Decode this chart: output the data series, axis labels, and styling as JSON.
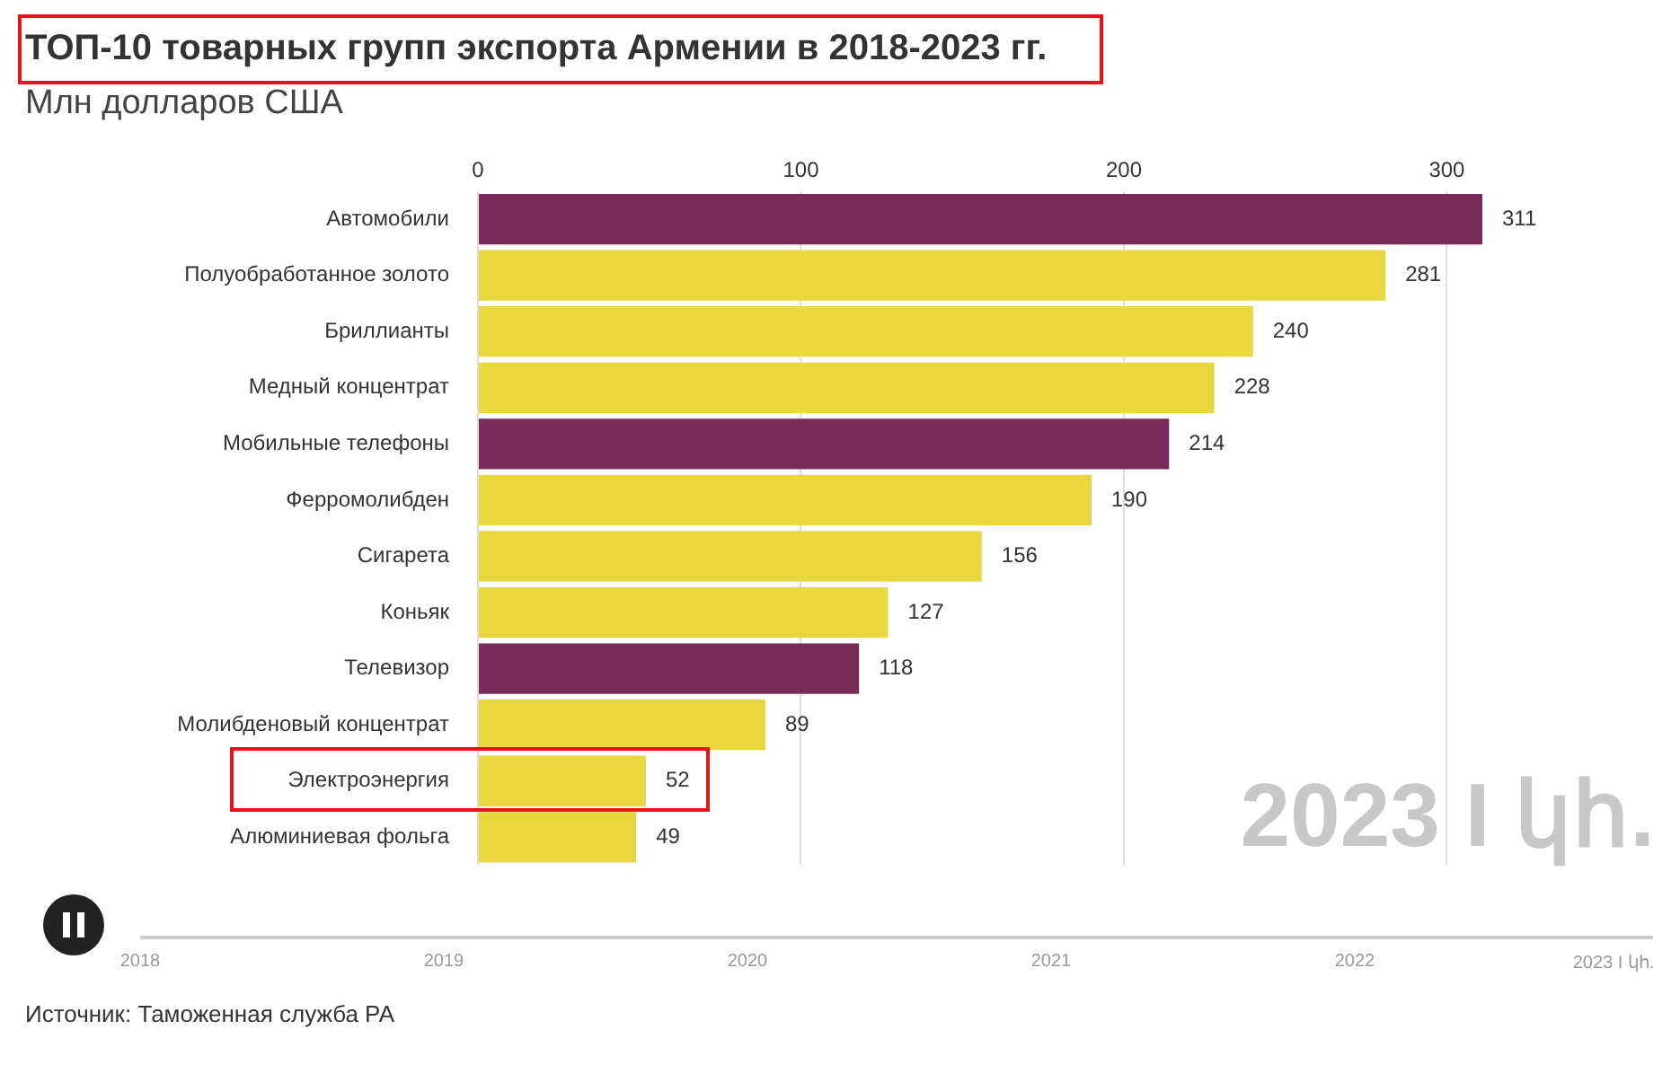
{
  "chart_data": {
    "type": "bar",
    "orientation": "horizontal",
    "title": "ТОП-10 товарных групп экспорта Армении в 2018-2023 гг.",
    "subtitle": "Млн долларов США",
    "categories": [
      "Автомобили",
      "Полуобработанное золото",
      "Бриллианты",
      "Медный концентрат",
      "Мобильные телефоны",
      "Ферромолибден",
      "Сигарета",
      "Коньяк",
      "Телевизор",
      "Молибденовый концентрат",
      "Электроэнергия",
      "Алюминиевая фольга"
    ],
    "values": [
      311,
      281,
      240,
      228,
      214,
      190,
      156,
      127,
      118,
      89,
      52,
      49
    ],
    "colors": [
      "#772d58",
      "#e8d83e",
      "#e8d83e",
      "#e8d83e",
      "#772d58",
      "#e8d83e",
      "#e8d83e",
      "#e8d83e",
      "#772d58",
      "#e8d83e",
      "#e8d83e",
      "#e8d83e"
    ],
    "xlim": [
      0,
      311
    ],
    "xticks": [
      0,
      100,
      200,
      300
    ],
    "grid": "x",
    "legend": false,
    "data_labels": true,
    "annotations": [
      "2023 I կհ.",
      "2018",
      "2019",
      "2020",
      "2021",
      "2022",
      "2023 I կհ.",
      "Источник: Таможенная служба РА"
    ]
  }
}
